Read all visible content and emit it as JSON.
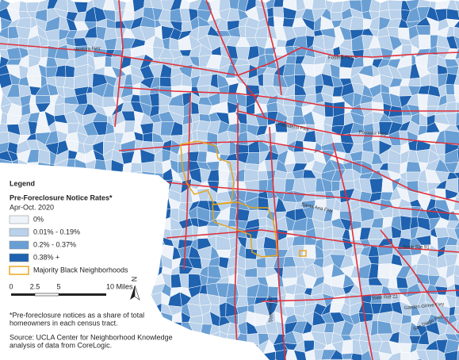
{
  "legend": {
    "title": "Legend",
    "subtitle": "Pre-Foreclosure Notice Rates*",
    "period": "Apr-Oct. 2020",
    "classes": [
      {
        "label": "0%",
        "color": "#eef3fa"
      },
      {
        "label": "0.01% - 0.19%",
        "color": "#b9d1ea"
      },
      {
        "label": "0.2% - 0.37%",
        "color": "#6a9fd4"
      },
      {
        "label": "0.38% +",
        "color": "#1f62b0"
      }
    ],
    "outline": {
      "label": "Majority Black Neighborhoods",
      "color": "#e8a317"
    }
  },
  "scale": {
    "labels": [
      "0",
      "2.5",
      "5",
      "10 Miles"
    ]
  },
  "north": "N",
  "notes": [
    [
      "*Pre-foreclosure notices as a share of total",
      "homeowners in each census tract."
    ],
    [
      "Source: UCLA Center for Neighborhood Knowledge",
      "analysis of data from CoreLogic."
    ]
  ],
  "roads": [
    "Ventura Fwy",
    "Foothill Fwy",
    "Pasadena Fwy",
    "Pomona Fwy",
    "Santa Ana Fwy",
    "State Rte 91",
    "State Rte 22",
    "Garden Grove Fwy",
    "San Diego Fwy",
    "State Rte 47"
  ]
}
